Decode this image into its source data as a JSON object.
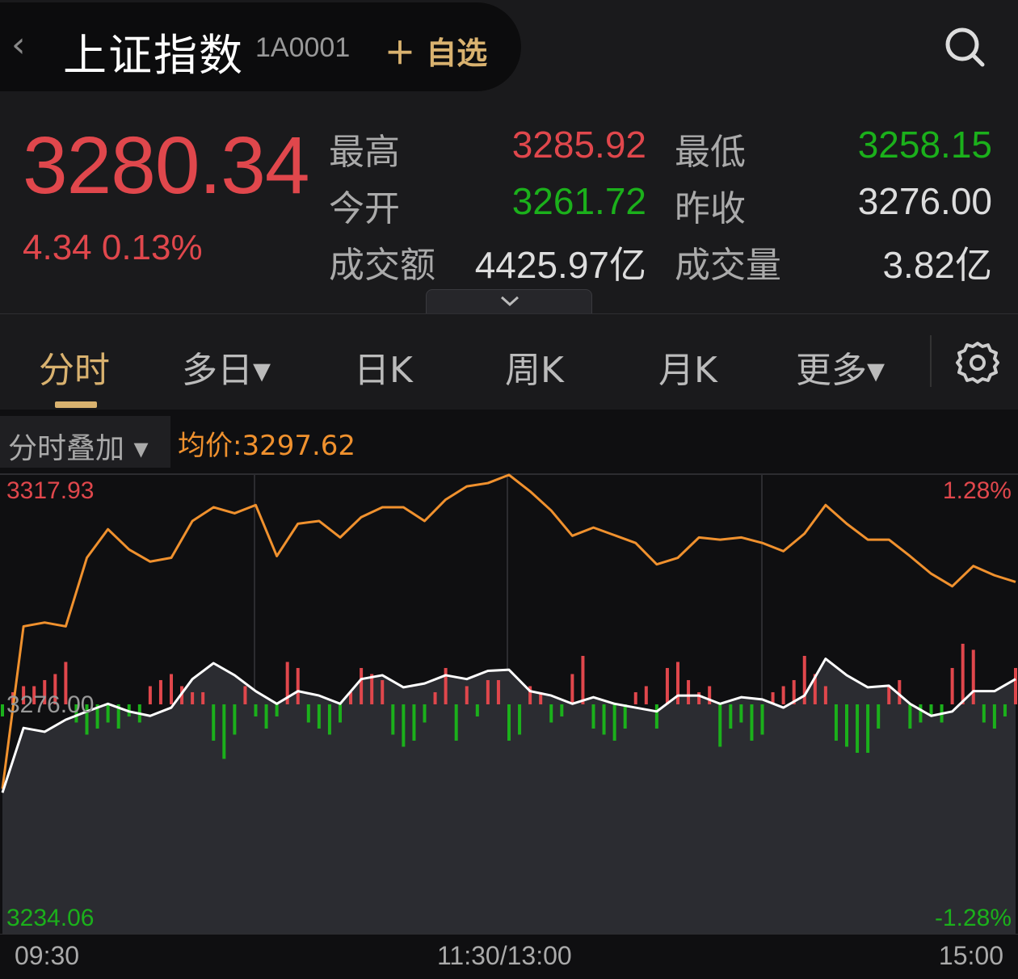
{
  "header": {
    "back_icon": "chevron-left-icon",
    "title": "上证指数",
    "code": "1A0001",
    "add_watchlist": "＋ 自选",
    "search_icon": "search-icon"
  },
  "quote": {
    "price": "3280.34",
    "change": "4.34 0.13%",
    "high_label": "最高",
    "high": "3285.92",
    "low_label": "最低",
    "low": "3258.15",
    "open_label": "今开",
    "open": "3261.72",
    "prev_close_label": "昨收",
    "prev_close": "3276.00",
    "turnover_label": "成交额",
    "turnover": "4425.97亿",
    "volume_label": "成交量",
    "volume": "3.82亿"
  },
  "tabs": [
    {
      "label": "分时"
    },
    {
      "label": "多日▾"
    },
    {
      "label": "日K"
    },
    {
      "label": "周K"
    },
    {
      "label": "月K"
    },
    {
      "label": "更多▾"
    }
  ],
  "active_tab": "分时",
  "overlay": {
    "label": "分时叠加 ▾",
    "avg_price": "均价:3297.62"
  },
  "colors": {
    "up": "#e0474c",
    "down": "#1bb01b",
    "accent": "#d9b26f",
    "orange_line": "#f0912e",
    "white_line": "#ffffff"
  },
  "chart_data": {
    "type": "line",
    "y_axis_left": {
      "top": "3317.93",
      "mid": "3276.00",
      "bottom": "3234.06"
    },
    "y_axis_right": {
      "top": "1.28%",
      "bottom": "-1.28%"
    },
    "ylim": [
      3234.06,
      3317.93
    ],
    "baseline": 3276.0,
    "x_ticks": [
      "09:30",
      "11:30/13:00",
      "15:00"
    ],
    "x_interval_minutes": 5,
    "series": [
      {
        "color": "#f0912e",
        "values": [
          3260.6,
          3290.2,
          3290.9,
          3290.2,
          3302.7,
          3307.9,
          3304.2,
          3302.0,
          3302.7,
          3309.4,
          3311.9,
          3310.8,
          3312.3,
          3303.0,
          3308.9,
          3309.4,
          3306.4,
          3310.1,
          3311.9,
          3311.9,
          3309.4,
          3313.3,
          3315.7,
          3316.3,
          3317.8,
          3314.8,
          3311.3,
          3306.7,
          3308.2,
          3306.8,
          3305.4,
          3301.5,
          3302.7,
          3306.4,
          3306.0,
          3306.4,
          3305.4,
          3303.9,
          3307.1,
          3312.3,
          3308.9,
          3306.0,
          3306.0,
          3303.0,
          3299.8,
          3297.5,
          3301.2,
          3299.5,
          3298.3
        ]
      },
      {
        "color": "#ffffff",
        "values": [
          3259.9,
          3271.7,
          3271.0,
          3273.2,
          3274.7,
          3276.1,
          3274.7,
          3273.9,
          3275.4,
          3280.6,
          3283.5,
          3281.3,
          3278.4,
          3276.1,
          3278.4,
          3277.6,
          3276.1,
          3280.6,
          3281.3,
          3279.1,
          3279.8,
          3281.3,
          3280.6,
          3282.1,
          3282.3,
          3278.4,
          3277.6,
          3276.1,
          3277.3,
          3276.1,
          3275.4,
          3274.7,
          3277.6,
          3277.6,
          3276.1,
          3277.3,
          3276.9,
          3275.4,
          3277.6,
          3284.3,
          3281.3,
          3279.1,
          3279.4,
          3276.1,
          3273.9,
          3274.7,
          3278.4,
          3278.4,
          3280.6
        ]
      }
    ],
    "bars": [
      -2,
      2,
      3,
      3,
      4,
      5,
      7,
      -3,
      -5,
      -4,
      -3,
      -4,
      -2,
      -3,
      3,
      4,
      5,
      3,
      2,
      2,
      -6,
      -9,
      -5,
      3,
      -2,
      -4,
      -2,
      7,
      6,
      -3,
      -4,
      -5,
      -3,
      2,
      6,
      5,
      4,
      -5,
      -7,
      -6,
      -3,
      2,
      6,
      -6,
      3,
      -2,
      4,
      4,
      -6,
      -5,
      3,
      2,
      -3,
      -2,
      5,
      8,
      -4,
      -5,
      -6,
      -4,
      2,
      3,
      -4,
      6,
      7,
      4,
      2,
      3,
      -7,
      -4,
      -3,
      -6,
      -5,
      2,
      3,
      4,
      8,
      5,
      3,
      -6,
      -7,
      -8,
      -8,
      -4,
      3,
      4,
      -4,
      -3,
      -2,
      -3,
      6,
      10,
      9,
      -3,
      -4,
      -2,
      6
    ]
  }
}
